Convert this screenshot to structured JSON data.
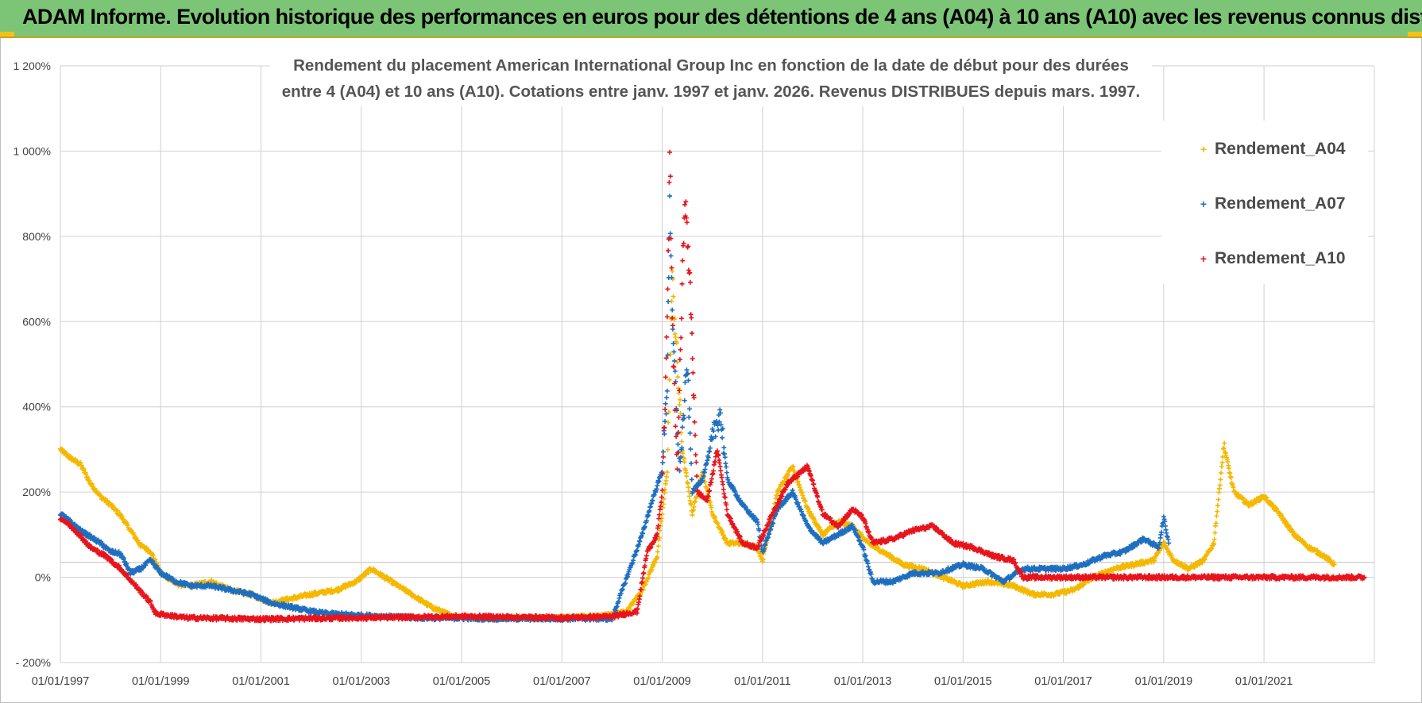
{
  "header": {
    "title": "ADAM Informe. Evolution historique des performances en euros pour des détentions de 4 ans (A04) à 10 ans (A10) avec les revenus connus distribués"
  },
  "chart_data": {
    "type": "scatter",
    "title_line1": "Rendement du placement American International Group Inc en fonction de la date de début pour des durées",
    "title_line2": "entre 4 (A04) et 10 ans (A10).  Cotations entre janv. 1997 et janv. 2026. Revenus DISTRIBUES depuis mars. 1997.",
    "xlabel": "",
    "ylabel": "",
    "xlim": [
      1997.0,
      2023.2
    ],
    "ylim": [
      -200,
      1200
    ],
    "y_ticks": [
      -200,
      0,
      200,
      400,
      600,
      800,
      1000,
      1200
    ],
    "y_tick_labels": [
      "- 200%",
      "0%",
      "200%",
      "400%",
      "600%",
      "800%",
      "1 000%",
      "1 200%"
    ],
    "x_ticks": [
      1997,
      1999,
      2001,
      2003,
      2005,
      2007,
      2009,
      2011,
      2013,
      2015,
      2017,
      2019,
      2021
    ],
    "x_tick_labels": [
      "01/01/1997",
      "01/01/1999",
      "01/01/2001",
      "01/01/2003",
      "01/01/2005",
      "01/01/2007",
      "01/01/2009",
      "01/01/2011",
      "01/01/2013",
      "01/01/2015",
      "01/01/2017",
      "01/01/2019",
      "01/01/2021"
    ],
    "grid": true,
    "legend_position": "top-right",
    "marker": "+",
    "series": [
      {
        "name": "Rendement_A04",
        "color": "#f5b800",
        "points": [
          [
            1997.0,
            300
          ],
          [
            1997.2,
            280
          ],
          [
            1997.4,
            265
          ],
          [
            1997.6,
            220
          ],
          [
            1997.8,
            190
          ],
          [
            1998.0,
            170
          ],
          [
            1998.2,
            145
          ],
          [
            1998.4,
            110
          ],
          [
            1998.6,
            75
          ],
          [
            1998.8,
            60
          ],
          [
            1999.0,
            10
          ],
          [
            1999.3,
            -15
          ],
          [
            1999.6,
            -20
          ],
          [
            2000.0,
            -10
          ],
          [
            2000.4,
            -30
          ],
          [
            2000.8,
            -40
          ],
          [
            2001.2,
            -60
          ],
          [
            2001.6,
            -50
          ],
          [
            2002.0,
            -40
          ],
          [
            2002.5,
            -30
          ],
          [
            2002.9,
            -10
          ],
          [
            2003.2,
            20
          ],
          [
            2003.6,
            -10
          ],
          [
            2004.0,
            -40
          ],
          [
            2004.4,
            -70
          ],
          [
            2004.8,
            -90
          ],
          [
            2005.2,
            -95
          ],
          [
            2006.0,
            -95
          ],
          [
            2007.0,
            -95
          ],
          [
            2007.8,
            -90
          ],
          [
            2008.3,
            -80
          ],
          [
            2008.6,
            -30
          ],
          [
            2008.9,
            50
          ],
          [
            2009.1,
            250
          ],
          [
            2009.2,
            700
          ],
          [
            2009.4,
            300
          ],
          [
            2009.6,
            150
          ],
          [
            2009.8,
            250
          ],
          [
            2010.0,
            150
          ],
          [
            2010.3,
            80
          ],
          [
            2010.6,
            80
          ],
          [
            2010.9,
            70
          ],
          [
            2011.0,
            40
          ],
          [
            2011.3,
            200
          ],
          [
            2011.6,
            260
          ],
          [
            2011.9,
            160
          ],
          [
            2012.2,
            100
          ],
          [
            2012.5,
            130
          ],
          [
            2012.8,
            120
          ],
          [
            2013.1,
            80
          ],
          [
            2013.4,
            60
          ],
          [
            2013.8,
            30
          ],
          [
            2014.2,
            20
          ],
          [
            2014.6,
            0
          ],
          [
            2015.0,
            -20
          ],
          [
            2015.5,
            -10
          ],
          [
            2016.0,
            -20
          ],
          [
            2016.4,
            -40
          ],
          [
            2016.8,
            -40
          ],
          [
            2017.2,
            -30
          ],
          [
            2017.6,
            0
          ],
          [
            2018.0,
            20
          ],
          [
            2018.4,
            30
          ],
          [
            2018.8,
            40
          ],
          [
            2019.0,
            80
          ],
          [
            2019.2,
            40
          ],
          [
            2019.5,
            20
          ],
          [
            2019.8,
            40
          ],
          [
            2020.0,
            80
          ],
          [
            2020.2,
            310
          ],
          [
            2020.4,
            200
          ],
          [
            2020.7,
            170
          ],
          [
            2021.0,
            190
          ],
          [
            2021.3,
            150
          ],
          [
            2021.6,
            100
          ],
          [
            2021.9,
            70
          ],
          [
            2022.2,
            50
          ],
          [
            2022.4,
            30
          ]
        ]
      },
      {
        "name": "Rendement_A07",
        "color": "#1f6fc0",
        "points": [
          [
            1997.0,
            150
          ],
          [
            1997.2,
            130
          ],
          [
            1997.4,
            110
          ],
          [
            1997.6,
            95
          ],
          [
            1997.8,
            80
          ],
          [
            1998.0,
            60
          ],
          [
            1998.2,
            55
          ],
          [
            1998.4,
            10
          ],
          [
            1998.6,
            20
          ],
          [
            1998.8,
            40
          ],
          [
            1999.0,
            10
          ],
          [
            1999.3,
            -10
          ],
          [
            1999.6,
            -20
          ],
          [
            2000.0,
            -20
          ],
          [
            2000.4,
            -30
          ],
          [
            2000.8,
            -40
          ],
          [
            2001.2,
            -60
          ],
          [
            2001.6,
            -70
          ],
          [
            2002.0,
            -80
          ],
          [
            2002.3,
            -85
          ],
          [
            2004.0,
            -95
          ],
          [
            2006.0,
            -97
          ],
          [
            2008.0,
            -97
          ],
          [
            2008.6,
            100
          ],
          [
            2008.8,
            180
          ],
          [
            2009.0,
            250
          ],
          [
            2009.1,
            450
          ],
          [
            2009.15,
            900
          ],
          [
            2009.2,
            600
          ],
          [
            2009.35,
            250
          ],
          [
            2009.5,
            500
          ],
          [
            2009.6,
            200
          ],
          [
            2009.8,
            230
          ],
          [
            2010.0,
            320
          ],
          [
            2010.15,
            390
          ],
          [
            2010.3,
            230
          ],
          [
            2010.6,
            170
          ],
          [
            2010.9,
            130
          ],
          [
            2011.0,
            60
          ],
          [
            2011.3,
            160
          ],
          [
            2011.6,
            200
          ],
          [
            2011.9,
            120
          ],
          [
            2012.2,
            80
          ],
          [
            2012.5,
            100
          ],
          [
            2012.8,
            120
          ],
          [
            2013.0,
            70
          ],
          [
            2013.2,
            -10
          ],
          [
            2013.6,
            -10
          ],
          [
            2014.0,
            10
          ],
          [
            2014.5,
            10
          ],
          [
            2015.0,
            30
          ],
          [
            2015.4,
            20
          ],
          [
            2015.8,
            -10
          ],
          [
            2016.2,
            20
          ],
          [
            2016.6,
            20
          ],
          [
            2017.0,
            20
          ],
          [
            2017.4,
            30
          ],
          [
            2017.8,
            50
          ],
          [
            2018.2,
            60
          ],
          [
            2018.6,
            90
          ],
          [
            2018.9,
            70
          ],
          [
            2019.0,
            140
          ],
          [
            2019.1,
            80
          ]
        ]
      },
      {
        "name": "Rendement_A10",
        "color": "#e8141c",
        "points": [
          [
            1997.0,
            140
          ],
          [
            1997.3,
            110
          ],
          [
            1997.6,
            70
          ],
          [
            1997.9,
            50
          ],
          [
            1998.2,
            20
          ],
          [
            1998.5,
            -20
          ],
          [
            1998.8,
            -60
          ],
          [
            1998.9,
            -85
          ],
          [
            1999.5,
            -95
          ],
          [
            2001.0,
            -98
          ],
          [
            2003.0,
            -95
          ],
          [
            2005.0,
            -92
          ],
          [
            2007.0,
            -95
          ],
          [
            2008.0,
            -92
          ],
          [
            2008.5,
            -80
          ],
          [
            2008.7,
            60
          ],
          [
            2008.9,
            100
          ],
          [
            2009.0,
            200
          ],
          [
            2009.08,
            500
          ],
          [
            2009.13,
            800
          ],
          [
            2009.15,
            1020
          ],
          [
            2009.2,
            600
          ],
          [
            2009.3,
            250
          ],
          [
            2009.45,
            900
          ],
          [
            2009.55,
            700
          ],
          [
            2009.7,
            200
          ],
          [
            2009.9,
            180
          ],
          [
            2010.1,
            300
          ],
          [
            2010.3,
            150
          ],
          [
            2010.6,
            80
          ],
          [
            2010.9,
            70
          ],
          [
            2011.2,
            150
          ],
          [
            2011.5,
            220
          ],
          [
            2011.7,
            240
          ],
          [
            2011.9,
            260
          ],
          [
            2012.2,
            150
          ],
          [
            2012.5,
            120
          ],
          [
            2012.8,
            160
          ],
          [
            2013.0,
            140
          ],
          [
            2013.2,
            80
          ],
          [
            2013.6,
            90
          ],
          [
            2014.0,
            110
          ],
          [
            2014.4,
            120
          ],
          [
            2014.8,
            80
          ],
          [
            2015.2,
            70
          ],
          [
            2015.6,
            50
          ],
          [
            2016.0,
            40
          ],
          [
            2016.2,
            0
          ],
          [
            2017.0,
            0
          ],
          [
            2018.0,
            0
          ],
          [
            2019.0,
            0
          ],
          [
            2020.0,
            0
          ],
          [
            2021.0,
            0
          ],
          [
            2022.0,
            0
          ],
          [
            2023.0,
            0
          ]
        ]
      }
    ]
  }
}
